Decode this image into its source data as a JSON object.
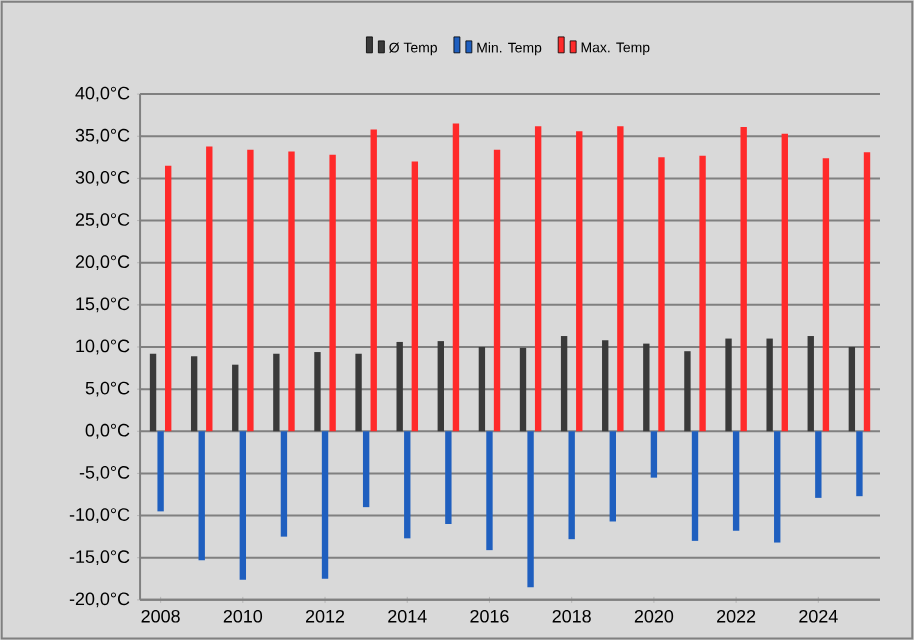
{
  "chart_data": {
    "type": "bar",
    "categories": [
      "2008",
      null,
      "2010",
      null,
      "2012",
      null,
      "2014",
      null,
      "2016",
      null,
      "2018",
      null,
      "2020",
      null,
      "2022",
      null,
      "2024",
      null
    ],
    "series": [
      {
        "name": "Ø Temp",
        "color": "#3a3a3a",
        "values": [
          9.2,
          8.9,
          7.9,
          9.2,
          9.4,
          9.2,
          10.6,
          10.7,
          10.0,
          9.9,
          11.3,
          10.8,
          10.4,
          9.5,
          11.0,
          11.0,
          11.3,
          10.0
        ]
      },
      {
        "name": "Min. Temp",
        "color": "#1f5fbf",
        "values": [
          -9.5,
          -15.3,
          -17.6,
          -12.5,
          -17.5,
          -9.0,
          -12.7,
          -11.0,
          -14.1,
          -18.5,
          -12.8,
          -10.7,
          -5.5,
          -13.0,
          -11.8,
          -13.2,
          -7.9,
          -7.7
        ]
      },
      {
        "name": "Max. Temp",
        "color": "#ff2a2a",
        "values": [
          31.5,
          33.8,
          33.4,
          33.2,
          32.8,
          35.8,
          32.0,
          36.5,
          33.4,
          36.2,
          35.6,
          36.2,
          32.5,
          32.7,
          36.1,
          35.3,
          32.4,
          33.1
        ]
      }
    ],
    "ylim": [
      -20,
      40
    ],
    "yticks": [
      {
        "value": -20,
        "label": "-20,0°C"
      },
      {
        "value": -15,
        "label": "-15,0°C"
      },
      {
        "value": -10,
        "label": "-10,0°C"
      },
      {
        "value": -5,
        "label": "-5,0°C"
      },
      {
        "value": 0,
        "label": "0,0°C"
      },
      {
        "value": 5,
        "label": "5,0°C"
      },
      {
        "value": 10,
        "label": "10,0°C"
      },
      {
        "value": 15,
        "label": "15,0°C"
      },
      {
        "value": 20,
        "label": "20,0°C"
      },
      {
        "value": 25,
        "label": "25,0°C"
      },
      {
        "value": 30,
        "label": "30,0°C"
      },
      {
        "value": 35,
        "label": "35,0°C"
      },
      {
        "value": 40,
        "label": "40,0°C"
      }
    ],
    "grid": "y",
    "legend": "top"
  }
}
